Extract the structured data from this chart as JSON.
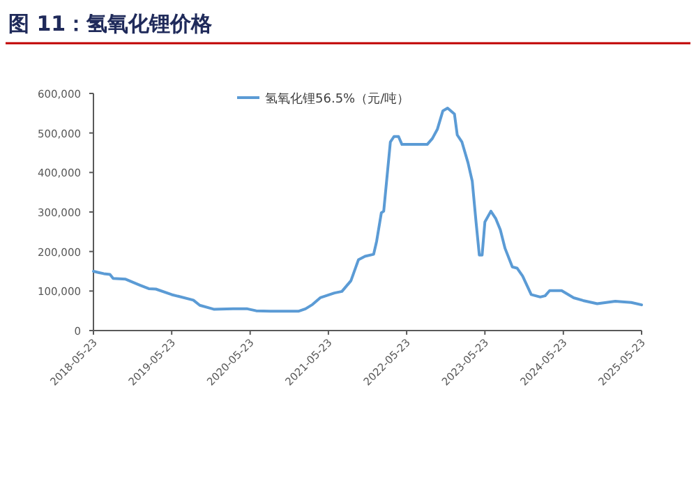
{
  "chart_data": {
    "type": "line",
    "title": "图 11：氢氧化锂价格",
    "x": [
      "2018-05-23",
      "2018-06-15",
      "2018-07-10",
      "2018-08-08",
      "2018-08-23",
      "2018-10-20",
      "2018-12-25",
      "2019-02-05",
      "2019-03-10",
      "2019-05-23",
      "2019-09-01",
      "2019-10-01",
      "2019-11-15",
      "2019-12-05",
      "2020-03-05",
      "2020-05-10",
      "2020-06-20",
      "2020-08-25",
      "2021-01-05",
      "2021-02-05",
      "2021-03-10",
      "2021-04-15",
      "2021-06-20",
      "2021-07-25",
      "2021-09-05",
      "2021-10-10",
      "2021-11-10",
      "2021-12-20",
      "2022-01-03",
      "2022-01-25",
      "2022-02-05",
      "2022-03-08",
      "2022-03-25",
      "2022-04-15",
      "2022-05-01",
      "2022-08-27",
      "2022-09-20",
      "2022-10-13",
      "2022-11-08",
      "2022-11-30",
      "2023-01-01",
      "2023-01-14",
      "2023-02-05",
      "2023-03-05",
      "2023-03-25",
      "2023-04-12",
      "2023-04-27",
      "2023-05-10",
      "2023-05-23",
      "2023-06-20",
      "2023-07-12",
      "2023-08-03",
      "2023-08-25",
      "2023-09-28",
      "2023-10-20",
      "2023-11-15",
      "2023-12-25",
      "2024-02-05",
      "2024-02-28",
      "2024-03-20",
      "2024-05-15",
      "2024-07-10",
      "2024-08-23",
      "2024-10-28",
      "2025-01-20",
      "2025-04-05",
      "2025-05-23"
    ],
    "series": [
      {
        "name": "氢氧化锂56.5%（元/吨）",
        "color": "#5b9bd5",
        "values": [
          150000,
          147000,
          144000,
          142000,
          132000,
          130000,
          115000,
          106000,
          105000,
          91000,
          77000,
          64000,
          57000,
          54000,
          55000,
          55000,
          50000,
          49000,
          49000,
          55000,
          66000,
          83000,
          95000,
          99000,
          126000,
          179000,
          188000,
          193000,
          226000,
          298000,
          302000,
          477000,
          491000,
          491000,
          471000,
          471000,
          486000,
          509000,
          556000,
          563000,
          548000,
          495000,
          477000,
          425000,
          378000,
          273000,
          191000,
          191000,
          275000,
          302000,
          284000,
          255000,
          208000,
          161000,
          158000,
          138000,
          91000,
          85000,
          88000,
          101000,
          101000,
          83000,
          76000,
          68000,
          74000,
          71000,
          65000
        ]
      }
    ],
    "xlim": [
      "2018-05-23",
      "2025-05-23"
    ],
    "xticks": [
      "2018-05-23",
      "2019-05-23",
      "2020-05-23",
      "2021-05-23",
      "2022-05-23",
      "2023-05-23",
      "2024-05-23",
      "2025-05-23"
    ],
    "ylim": [
      0,
      600000
    ],
    "yticks": [
      0,
      {
        "value": 100000,
        "label": "100,000"
      },
      {
        "value": 200000,
        "label": "200,000"
      },
      {
        "value": 300000,
        "label": "300,000"
      },
      {
        "value": 400000,
        "label": "400,000"
      },
      {
        "value": 500000,
        "label": "500,000"
      },
      {
        "value": 600000,
        "label": "600,000"
      }
    ],
    "legend": "top",
    "marker": "none",
    "line_style": "solid"
  }
}
